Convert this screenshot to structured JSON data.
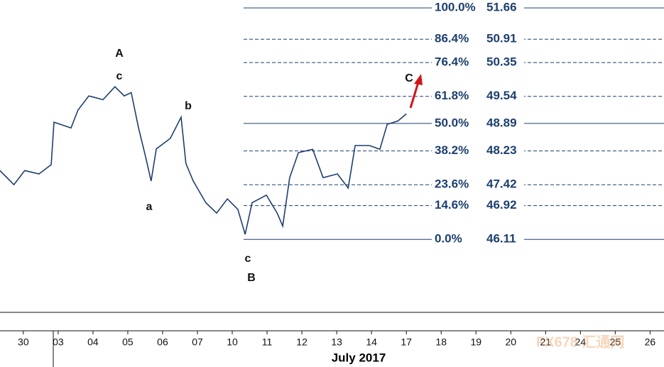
{
  "chart_data": {
    "type": "line",
    "series": [
      {
        "color": "#1d3f6e",
        "x": [
          -0.67,
          -0.27,
          0.04,
          0.45,
          0.8,
          0.88,
          1.37,
          1.57,
          1.88,
          2.29,
          2.63,
          2.9,
          3.1,
          3.31,
          3.51,
          3.67,
          3.82,
          4.22,
          4.53,
          4.67,
          4.88,
          5.24,
          5.55,
          5.86,
          6.16,
          6.37,
          6.57,
          6.98,
          7.29,
          7.45,
          7.65,
          7.9,
          8.31,
          8.61,
          9.02,
          9.33,
          9.53,
          9.94,
          10.24,
          10.45,
          10.76,
          11.0
        ],
        "values": [
          47.76,
          47.42,
          47.76,
          47.68,
          47.9,
          48.92,
          48.78,
          49.21,
          49.55,
          49.46,
          49.77,
          49.55,
          49.63,
          48.78,
          48.1,
          47.51,
          48.28,
          48.53,
          49.04,
          47.93,
          47.51,
          46.99,
          46.74,
          47.08,
          46.83,
          46.23,
          46.99,
          47.17,
          46.74,
          46.43,
          47.59,
          48.19,
          48.27,
          47.59,
          47.68,
          47.34,
          48.36,
          48.36,
          48.27,
          48.87,
          48.95,
          49.12
        ]
      }
    ],
    "xlim": [
      -0.67,
      18.4
    ],
    "ylim": [
      44.36,
      51.85
    ],
    "categories": [
      "30",
      "03",
      "04",
      "05",
      "06",
      "07",
      "10",
      "11",
      "12",
      "13",
      "14",
      "17",
      "18",
      "19",
      "20",
      "21",
      "24",
      "25",
      "26"
    ],
    "x_label": "July 2017",
    "levels": [
      {
        "ratio": "100.0%",
        "value": 51.66,
        "dashed": false
      },
      {
        "ratio": "86.4%",
        "value": 50.91,
        "dashed": true
      },
      {
        "ratio": "76.4%",
        "value": 50.35,
        "dashed": true
      },
      {
        "ratio": "61.8%",
        "value": 49.54,
        "dashed": true
      },
      {
        "ratio": "50.0%",
        "value": 48.89,
        "dashed": false
      },
      {
        "ratio": "38.2%",
        "value": 48.23,
        "dashed": true
      },
      {
        "ratio": "23.6%",
        "value": 47.42,
        "dashed": true
      },
      {
        "ratio": "14.6%",
        "value": 46.92,
        "dashed": true
      },
      {
        "ratio": "0.0%",
        "value": 46.11,
        "dashed": false
      }
    ],
    "annotations": [
      "A",
      "c",
      "a",
      "b",
      "c",
      "B",
      "C"
    ],
    "arrow_color": "#d0141c",
    "watermark": "FX678 汇通网"
  }
}
